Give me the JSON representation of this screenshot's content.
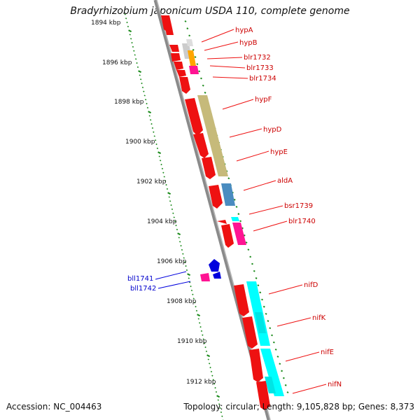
{
  "title": "Bradyrhizobium japonicum USDA 110, complete genome",
  "footer": {
    "accession": "Accession: NC_004463",
    "summary": "Topology: circular; Length: 9,105,828 bp; Genes: 8,373"
  },
  "colors": {
    "cds": "#ee1111",
    "label_forward": "#cc0000",
    "label_reverse": "#0000cc",
    "backbone": "#8a8a8a",
    "ticks": "#1a8a1a"
  },
  "kbp_ticks": [
    "1894 kbp",
    "1896 kbp",
    "1898 kbp",
    "1900 kbp",
    "1902 kbp",
    "1904 kbp",
    "1906 kbp",
    "1908 kbp",
    "1910 kbp",
    "1912 kbp"
  ],
  "forward_genes": [
    "hypA",
    "hypB",
    "blr1732",
    "blr1733",
    "blr1734",
    "hypF",
    "hypD",
    "hypE",
    "aldA",
    "bsr1739",
    "blr1740",
    "nifD",
    "nifK",
    "nifE",
    "nifN"
  ],
  "reverse_genes": [
    "bll1741",
    "bll1742"
  ]
}
